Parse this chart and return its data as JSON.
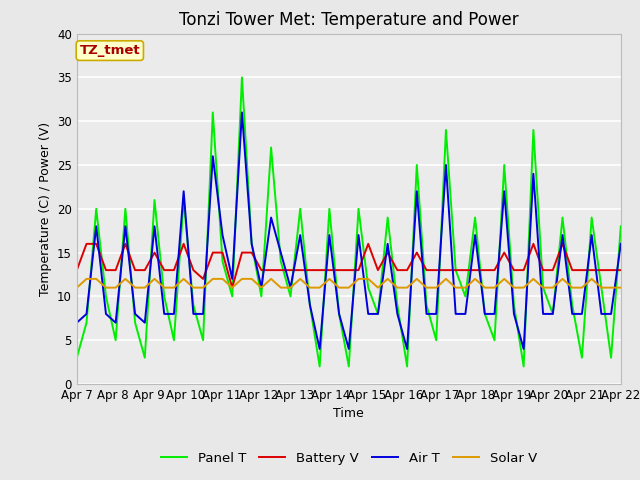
{
  "title": "Tonzi Tower Met: Temperature and Power",
  "xlabel": "Time",
  "ylabel": "Temperature (C) / Power (V)",
  "ylim": [
    0,
    40
  ],
  "xtick_labels": [
    "Apr 7",
    "Apr 8",
    "Apr 9",
    "Apr 10",
    "Apr 11",
    "Apr 12",
    "Apr 13",
    "Apr 14",
    "Apr 15",
    "Apr 16",
    "Apr 17",
    "Apr 18",
    "Apr 19",
    "Apr 20",
    "Apr 21",
    "Apr 22"
  ],
  "legend_labels": [
    "Panel T",
    "Battery V",
    "Air T",
    "Solar V"
  ],
  "legend_colors": [
    "#00ee00",
    "#dd0000",
    "#0000dd",
    "#dd9900"
  ],
  "annotation_text": "TZ_tmet",
  "annotation_bg": "#ffffcc",
  "annotation_border": "#ccaa00",
  "annotation_text_color": "#aa0000",
  "bg_color": "#e8e8e8",
  "plot_bg": "#ebebeb",
  "title_fontsize": 12,
  "axis_fontsize": 9,
  "tick_fontsize": 8.5,
  "line_width": 1.4,
  "panel_t": [
    3,
    7,
    20,
    10,
    5,
    20,
    7,
    3,
    21,
    10,
    5,
    21,
    9,
    5,
    31,
    14,
    10,
    35,
    16,
    10,
    27,
    14,
    10,
    20,
    9,
    2,
    20,
    8,
    2,
    20,
    11,
    8,
    19,
    9,
    2,
    25,
    9,
    5,
    29,
    13,
    10,
    19,
    8,
    5,
    25,
    9,
    2,
    29,
    11,
    8,
    19,
    9,
    3,
    19,
    11,
    3,
    18
  ],
  "battery_v": [
    13,
    16,
    16,
    13,
    13,
    16,
    13,
    13,
    15,
    13,
    13,
    16,
    13,
    12,
    15,
    15,
    11,
    15,
    15,
    13,
    13,
    13,
    13,
    13,
    13,
    13,
    13,
    13,
    13,
    13,
    16,
    13,
    15,
    13,
    13,
    15,
    13,
    13,
    13,
    13,
    13,
    13,
    13,
    13,
    15,
    13,
    13,
    16,
    13,
    13,
    16,
    13,
    13,
    13,
    13,
    13,
    13
  ],
  "air_t": [
    7,
    8,
    18,
    8,
    7,
    18,
    8,
    7,
    18,
    8,
    8,
    22,
    8,
    8,
    26,
    17,
    12,
    31,
    16,
    11,
    19,
    15,
    11,
    17,
    9,
    4,
    17,
    8,
    4,
    17,
    8,
    8,
    16,
    8,
    4,
    22,
    8,
    8,
    25,
    8,
    8,
    17,
    8,
    8,
    22,
    8,
    4,
    24,
    8,
    8,
    17,
    8,
    8,
    17,
    8,
    8,
    16
  ],
  "solar_v": [
    11,
    12,
    12,
    11,
    11,
    12,
    11,
    11,
    12,
    11,
    11,
    12,
    11,
    11,
    12,
    12,
    11,
    12,
    12,
    11,
    12,
    11,
    11,
    12,
    11,
    11,
    12,
    11,
    11,
    12,
    12,
    11,
    12,
    11,
    11,
    12,
    11,
    11,
    12,
    11,
    11,
    12,
    11,
    11,
    12,
    11,
    11,
    12,
    11,
    11,
    12,
    11,
    11,
    12,
    11,
    11,
    11
  ]
}
